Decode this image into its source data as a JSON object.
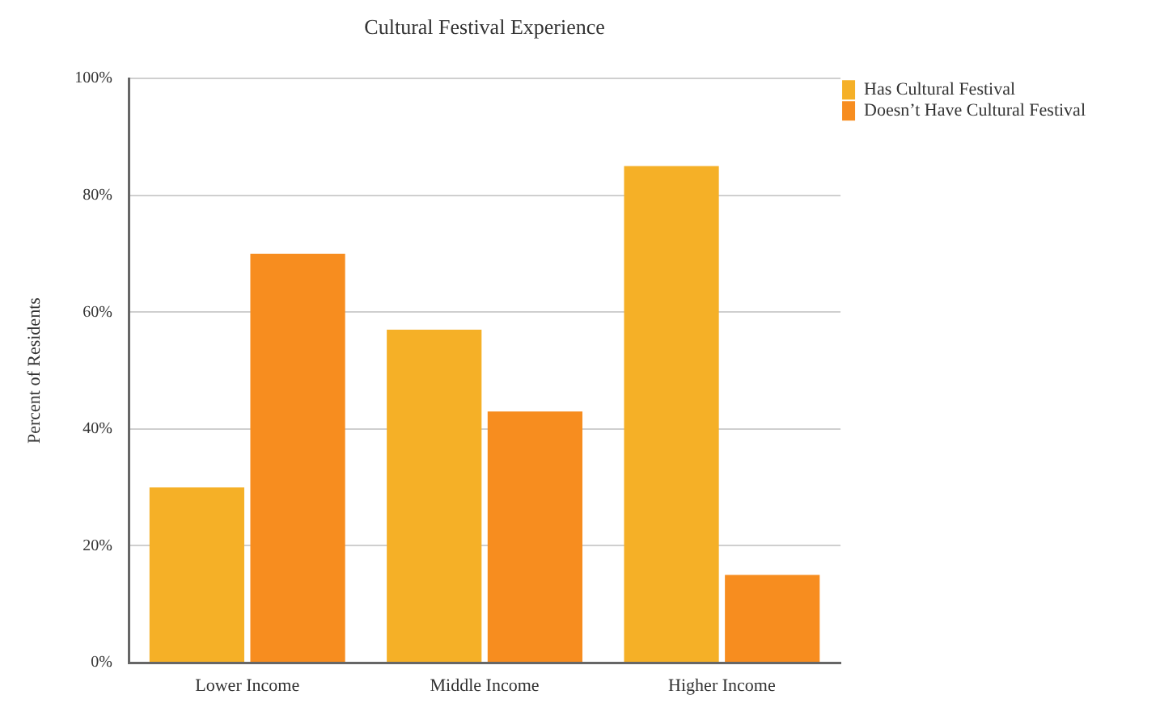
{
  "chart_data": {
    "type": "bar",
    "title": "Cultural Festival Experience",
    "ylabel": "Percent of Residents",
    "categories": [
      "Lower Income",
      "Middle Income",
      "Higher Income"
    ],
    "series": [
      {
        "name": "Has Cultural Festival",
        "color": "#f5b027",
        "values": [
          30,
          57,
          85
        ]
      },
      {
        "name": "Doesn’t Have Cultural Festival",
        "color": "#f78d1f",
        "values": [
          70,
          43,
          15
        ]
      }
    ],
    "ylim": [
      0,
      100
    ],
    "yticks": [
      {
        "value": 0,
        "label": "0%"
      },
      {
        "value": 20,
        "label": "20%"
      },
      {
        "value": 40,
        "label": "40%"
      },
      {
        "value": 60,
        "label": "60%"
      },
      {
        "value": 80,
        "label": "80%"
      },
      {
        "value": 100,
        "label": "100%"
      }
    ],
    "grid": "y",
    "legend": "top right"
  }
}
